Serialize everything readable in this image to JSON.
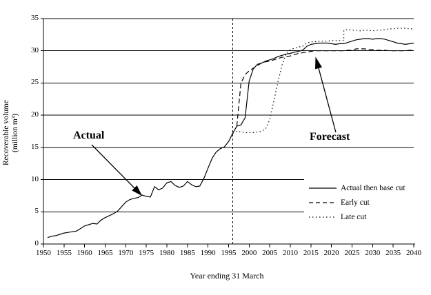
{
  "chart_data": {
    "type": "line",
    "title": "",
    "xlabel": "Year ending 31 March",
    "ylabel": "Recoverable volume (million m³)",
    "ylabel_line1": "Recoverable volume",
    "ylabel_line2": "(million m³)",
    "xlim": [
      1950,
      2040
    ],
    "ylim": [
      0,
      35
    ],
    "x_ticks": [
      1950,
      1955,
      1960,
      1965,
      1970,
      1975,
      1980,
      1985,
      1990,
      1995,
      2000,
      2005,
      2010,
      2015,
      2020,
      2025,
      2030,
      2035,
      2040
    ],
    "y_ticks": [
      0,
      5,
      10,
      15,
      20,
      25,
      30,
      35
    ],
    "grid": "horizontal",
    "divider_x": 1996,
    "legend_position": "inside-lower-right",
    "series": [
      {
        "name": "Actual then base cut",
        "style": "solid",
        "points": [
          [
            1951,
            1.0
          ],
          [
            1952,
            1.2
          ],
          [
            1953,
            1.3
          ],
          [
            1954,
            1.5
          ],
          [
            1955,
            1.7
          ],
          [
            1956,
            1.8
          ],
          [
            1957,
            1.9
          ],
          [
            1958,
            2.0
          ],
          [
            1959,
            2.4
          ],
          [
            1960,
            2.8
          ],
          [
            1961,
            3.0
          ],
          [
            1962,
            3.2
          ],
          [
            1963,
            3.1
          ],
          [
            1964,
            3.7
          ],
          [
            1965,
            4.1
          ],
          [
            1966,
            4.4
          ],
          [
            1967,
            4.7
          ],
          [
            1968,
            5.1
          ],
          [
            1969,
            5.8
          ],
          [
            1970,
            6.5
          ],
          [
            1971,
            6.9
          ],
          [
            1972,
            7.1
          ],
          [
            1973,
            7.2
          ],
          [
            1974,
            7.6
          ],
          [
            1975,
            7.4
          ],
          [
            1976,
            7.3
          ],
          [
            1977,
            8.9
          ],
          [
            1978,
            8.4
          ],
          [
            1979,
            8.7
          ],
          [
            1980,
            9.5
          ],
          [
            1981,
            9.7
          ],
          [
            1982,
            9.1
          ],
          [
            1983,
            8.8
          ],
          [
            1984,
            9.0
          ],
          [
            1985,
            9.7
          ],
          [
            1986,
            9.2
          ],
          [
            1987,
            8.9
          ],
          [
            1988,
            9.0
          ],
          [
            1989,
            10.2
          ],
          [
            1990,
            11.8
          ],
          [
            1991,
            13.3
          ],
          [
            1992,
            14.3
          ],
          [
            1993,
            14.8
          ],
          [
            1994,
            15.1
          ],
          [
            1995,
            15.9
          ],
          [
            1996,
            17.2
          ],
          [
            1997,
            18.3
          ],
          [
            1998,
            18.5
          ],
          [
            1999,
            19.6
          ],
          [
            2000,
            25.3
          ],
          [
            2001,
            27.2
          ],
          [
            2002,
            27.9
          ],
          [
            2003,
            28.1
          ],
          [
            2004,
            28.4
          ],
          [
            2005,
            28.6
          ],
          [
            2006,
            28.8
          ],
          [
            2007,
            29.1
          ],
          [
            2008,
            29.3
          ],
          [
            2009,
            29.5
          ],
          [
            2010,
            29.6
          ],
          [
            2011,
            29.8
          ],
          [
            2012,
            29.9
          ],
          [
            2013,
            30.1
          ],
          [
            2014,
            30.7
          ],
          [
            2015,
            31.0
          ],
          [
            2016,
            31.1
          ],
          [
            2017,
            31.2
          ],
          [
            2018,
            31.2
          ],
          [
            2019,
            31.2
          ],
          [
            2020,
            31.1
          ],
          [
            2021,
            31.0
          ],
          [
            2022,
            31.1
          ],
          [
            2023,
            31.1
          ],
          [
            2024,
            31.3
          ],
          [
            2025,
            31.5
          ],
          [
            2026,
            31.7
          ],
          [
            2027,
            31.8
          ],
          [
            2028,
            31.9
          ],
          [
            2029,
            31.9
          ],
          [
            2030,
            31.8
          ],
          [
            2031,
            31.9
          ],
          [
            2032,
            31.9
          ],
          [
            2033,
            31.8
          ],
          [
            2034,
            31.6
          ],
          [
            2035,
            31.4
          ],
          [
            2036,
            31.2
          ],
          [
            2037,
            31.1
          ],
          [
            2038,
            31.0
          ],
          [
            2039,
            31.1
          ],
          [
            2040,
            31.2
          ]
        ]
      },
      {
        "name": "Early cut",
        "style": "dashed",
        "points": [
          [
            1997,
            18.3
          ],
          [
            1998,
            25.0
          ],
          [
            1999,
            26.3
          ],
          [
            2000,
            26.9
          ],
          [
            2001,
            27.3
          ],
          [
            2002,
            27.7
          ],
          [
            2003,
            28.1
          ],
          [
            2004,
            28.3
          ],
          [
            2005,
            28.4
          ],
          [
            2006,
            28.6
          ],
          [
            2007,
            28.8
          ],
          [
            2008,
            29.0
          ],
          [
            2009,
            29.1
          ],
          [
            2010,
            29.2
          ],
          [
            2011,
            29.4
          ],
          [
            2012,
            29.6
          ],
          [
            2013,
            29.7
          ],
          [
            2014,
            29.8
          ],
          [
            2015,
            29.9
          ],
          [
            2016,
            30.0
          ],
          [
            2017,
            30.0
          ],
          [
            2018,
            30.0
          ],
          [
            2019,
            30.0
          ],
          [
            2020,
            30.0
          ],
          [
            2021,
            30.0
          ],
          [
            2022,
            30.0
          ],
          [
            2023,
            30.0
          ],
          [
            2024,
            30.1
          ],
          [
            2025,
            30.1
          ],
          [
            2026,
            30.3
          ],
          [
            2027,
            30.3
          ],
          [
            2028,
            30.3
          ],
          [
            2029,
            30.2
          ],
          [
            2030,
            30.2
          ],
          [
            2031,
            30.1
          ],
          [
            2032,
            30.1
          ],
          [
            2033,
            30.1
          ],
          [
            2034,
            30.0
          ],
          [
            2035,
            30.0
          ],
          [
            2036,
            30.0
          ],
          [
            2037,
            30.0
          ],
          [
            2038,
            30.0
          ],
          [
            2039,
            30.1
          ],
          [
            2040,
            30.1
          ]
        ]
      },
      {
        "name": "Late cut",
        "style": "dotted",
        "points": [
          [
            1996,
            17.2
          ],
          [
            1997,
            17.5
          ],
          [
            1998,
            17.4
          ],
          [
            1999,
            17.3
          ],
          [
            2000,
            17.3
          ],
          [
            2001,
            17.3
          ],
          [
            2002,
            17.4
          ],
          [
            2003,
            17.5
          ],
          [
            2004,
            17.9
          ],
          [
            2005,
            19.3
          ],
          [
            2006,
            22.2
          ],
          [
            2007,
            25.2
          ],
          [
            2008,
            27.8
          ],
          [
            2009,
            29.6
          ],
          [
            2010,
            30.2
          ],
          [
            2011,
            30.4
          ],
          [
            2012,
            30.6
          ],
          [
            2013,
            30.7
          ],
          [
            2014,
            31.2
          ],
          [
            2015,
            31.4
          ],
          [
            2016,
            31.4
          ],
          [
            2017,
            31.5
          ],
          [
            2018,
            31.5
          ],
          [
            2019,
            31.5
          ],
          [
            2020,
            31.6
          ],
          [
            2021,
            31.6
          ],
          [
            2022,
            31.6
          ],
          [
            2023,
            31.6
          ],
          [
            2023,
            33.2
          ],
          [
            2024,
            33.3
          ],
          [
            2025,
            33.2
          ],
          [
            2026,
            33.2
          ],
          [
            2027,
            33.1
          ],
          [
            2028,
            33.2
          ],
          [
            2029,
            33.2
          ],
          [
            2030,
            33.1
          ],
          [
            2031,
            33.2
          ],
          [
            2032,
            33.2
          ],
          [
            2033,
            33.3
          ],
          [
            2034,
            33.4
          ],
          [
            2035,
            33.4
          ],
          [
            2036,
            33.5
          ],
          [
            2037,
            33.5
          ],
          [
            2038,
            33.5
          ],
          [
            2039,
            33.4
          ],
          [
            2040,
            33.4
          ]
        ]
      }
    ],
    "annotations": [
      {
        "text": "Actual",
        "points_to": "actual curve near 1974 at ~7.6"
      },
      {
        "text": "Forecast",
        "points_to": "forecast curves near 2016 at ~29"
      }
    ]
  }
}
